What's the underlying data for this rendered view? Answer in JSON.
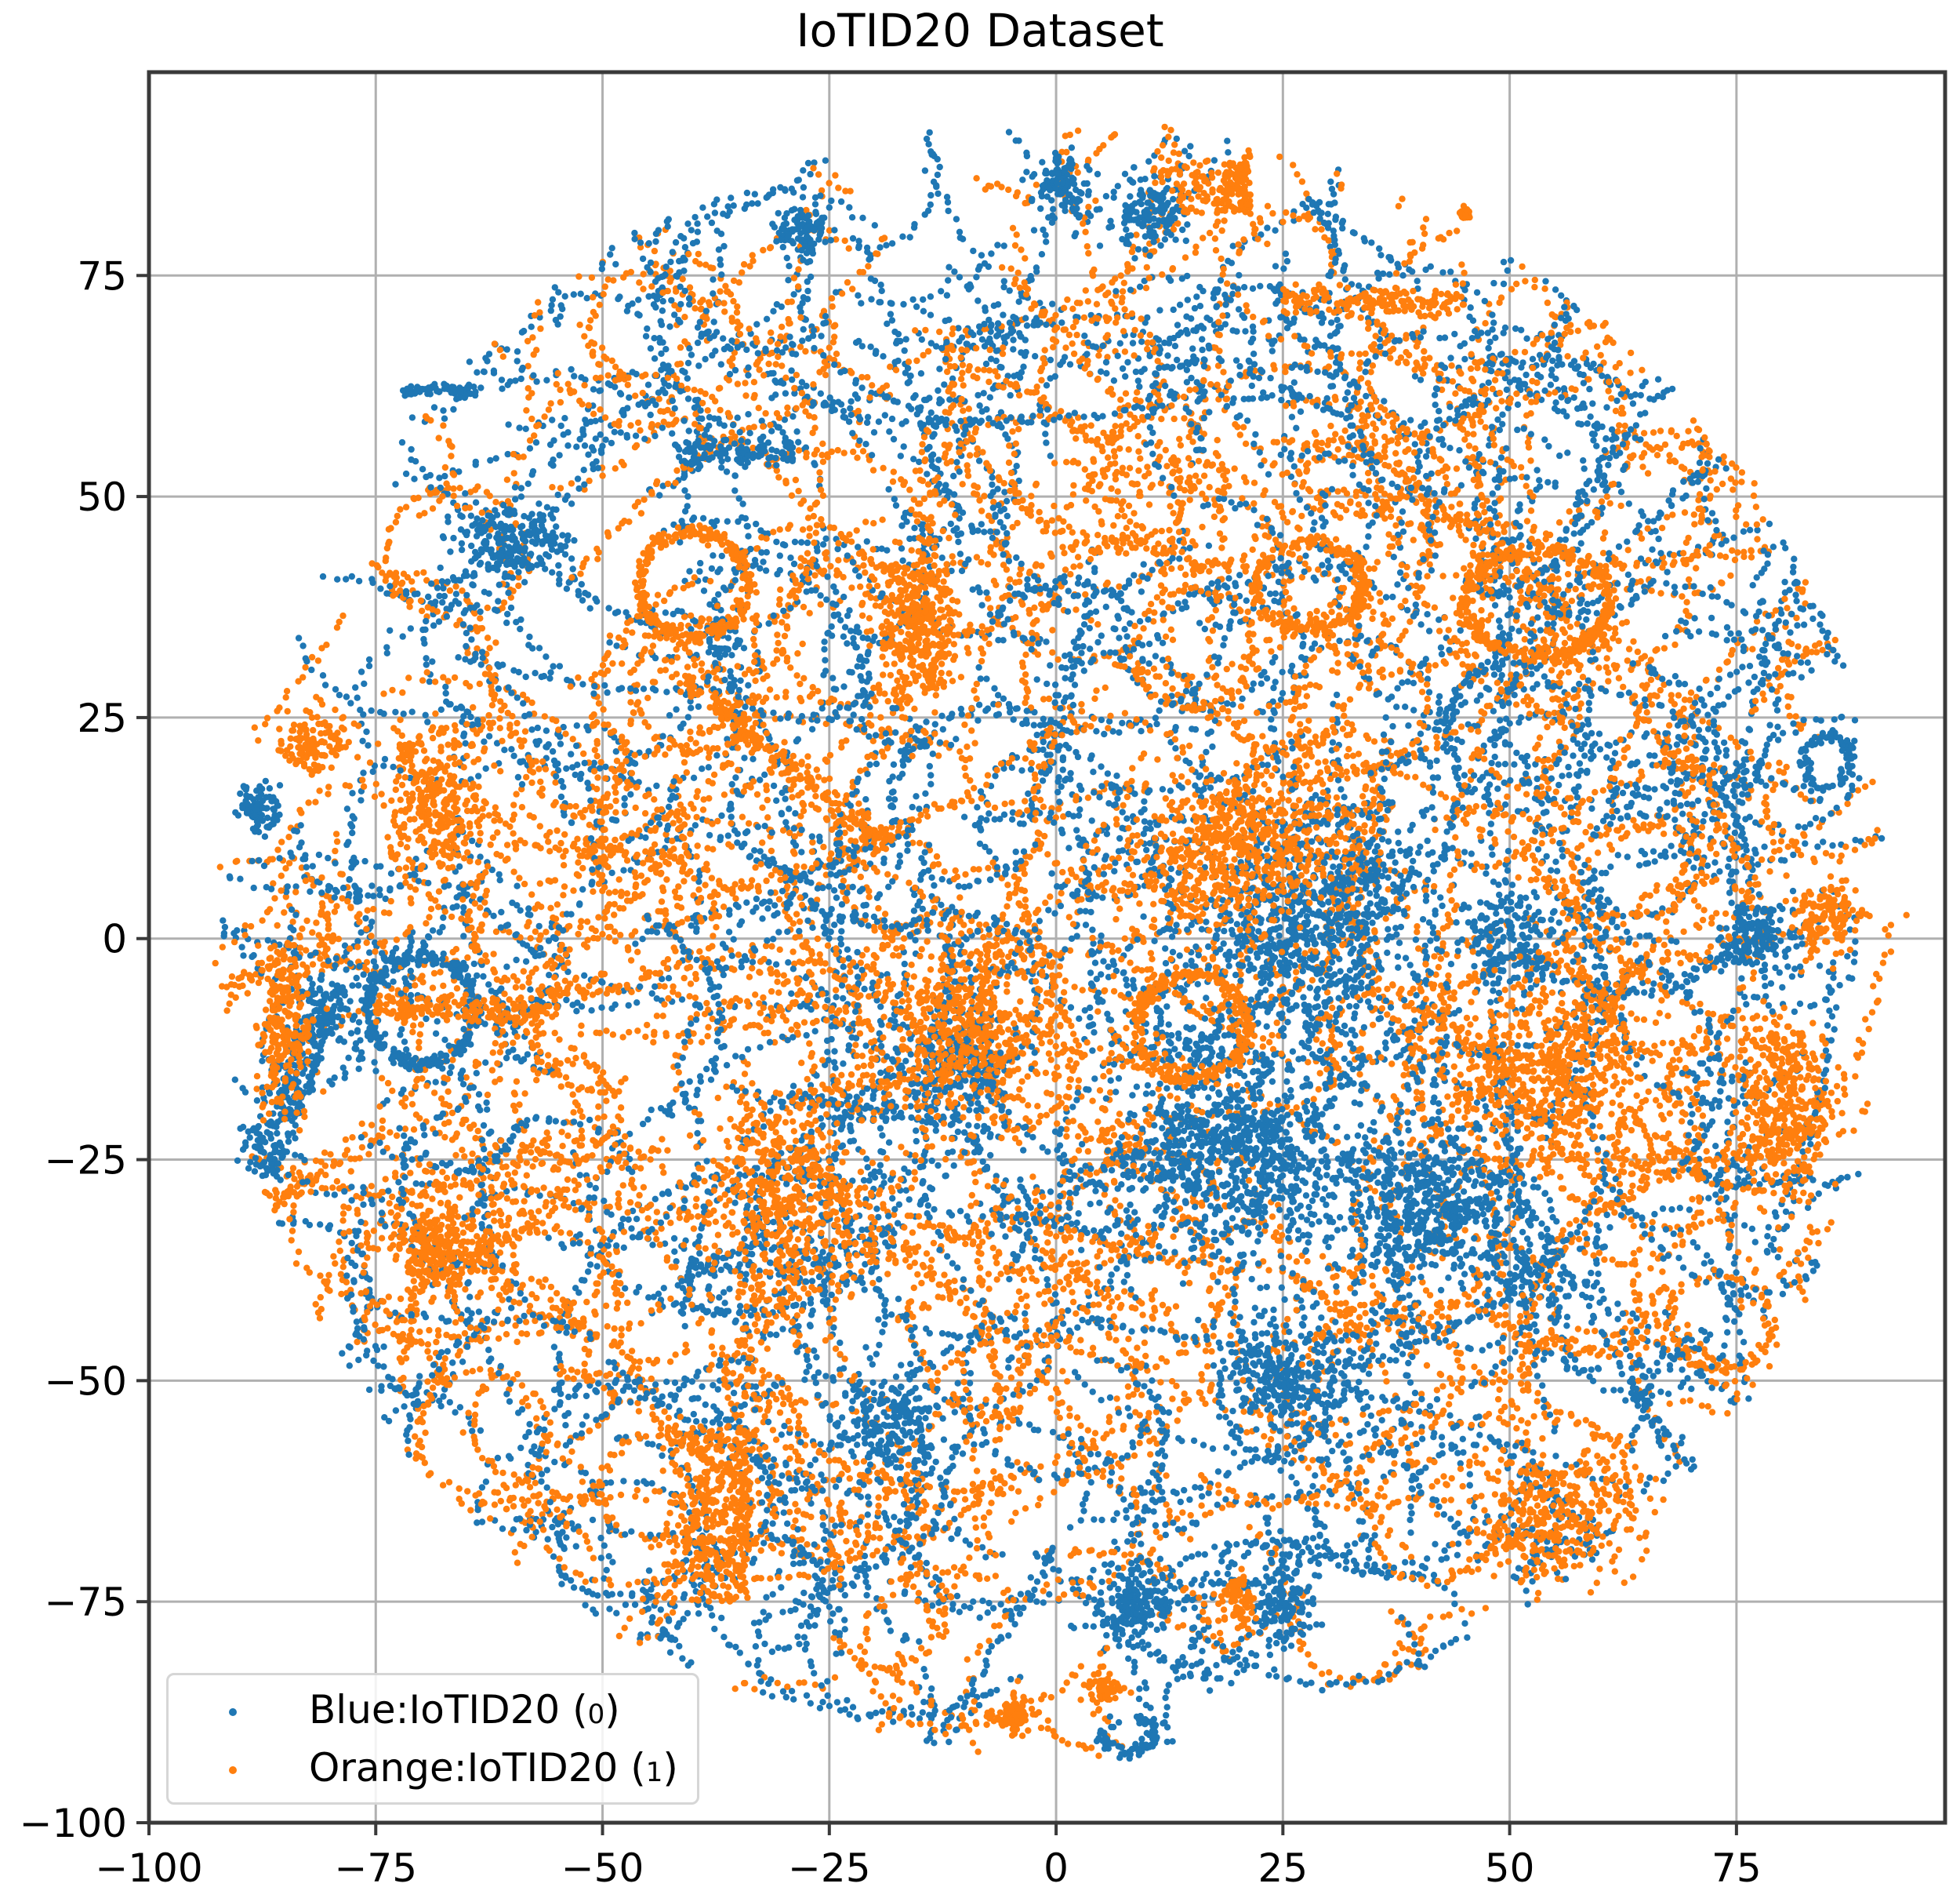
{
  "chart_data": {
    "type": "scatter",
    "title": "IoTID20 Dataset",
    "xlabel": "",
    "ylabel": "",
    "xlim": [
      -100,
      98
    ],
    "ylim": [
      -100,
      98
    ],
    "xticks": [
      -100,
      -75,
      -50,
      -25,
      0,
      25,
      50,
      75
    ],
    "yticks": [
      -100,
      -75,
      -50,
      -25,
      0,
      25,
      50,
      75
    ],
    "xtick_labels": [
      "−100",
      "−75",
      "−50",
      "−25",
      "0",
      "25",
      "50",
      "75"
    ],
    "ytick_labels": [
      "−100",
      "−75",
      "−50",
      "−25",
      "0",
      "25",
      "50",
      "75"
    ],
    "grid": true,
    "legend_position": "lower left",
    "description": "t-SNE style 2D embedding; points fill a roughly circular region of radius ~90 centered near (0, 0), with interleaved blue and orange curvilinear clusters",
    "series": [
      {
        "name": "Blue:IoTID20 (0)",
        "label_main": "Blue:IoTID20 (",
        "label_digit": "0",
        "label_close": ")",
        "color": "#1f77b4",
        "clusters": [
          {
            "cx": -88,
            "cy": 15,
            "rx": 2.5,
            "ry": 3,
            "shape": "blob"
          },
          {
            "cx": -85,
            "cy": -15,
            "rx": 3,
            "ry": 12,
            "shape": "arc",
            "angle": -20
          },
          {
            "cx": -70,
            "cy": -8,
            "rx": 6,
            "ry": 6,
            "shape": "ring"
          },
          {
            "cx": -68,
            "cy": 62,
            "rx": 4,
            "ry": 1,
            "shape": "line"
          },
          {
            "cx": -60,
            "cy": 45,
            "rx": 6,
            "ry": 4,
            "shape": "blob"
          },
          {
            "cx": -35,
            "cy": 55,
            "rx": 6,
            "ry": 2,
            "shape": "line"
          },
          {
            "cx": -28,
            "cy": 80,
            "rx": 3,
            "ry": 3,
            "shape": "blob"
          },
          {
            "cx": 1,
            "cy": 85,
            "rx": 3,
            "ry": 4,
            "shape": "blob"
          },
          {
            "cx": 10,
            "cy": 82,
            "rx": 4,
            "ry": 4,
            "shape": "blob"
          },
          {
            "cx": 28,
            "cy": 2,
            "rx": 10,
            "ry": 10,
            "shape": "scatter"
          },
          {
            "cx": 20,
            "cy": -25,
            "rx": 12,
            "ry": 10,
            "shape": "scatter"
          },
          {
            "cx": 40,
            "cy": -30,
            "rx": 8,
            "ry": 8,
            "shape": "scatter"
          },
          {
            "cx": 25,
            "cy": -50,
            "rx": 6,
            "ry": 6,
            "shape": "scatter"
          },
          {
            "cx": -10,
            "cy": -15,
            "rx": 5,
            "ry": 5,
            "shape": "scatter"
          },
          {
            "cx": -18,
            "cy": -55,
            "rx": 5,
            "ry": 5,
            "shape": "scatter"
          },
          {
            "cx": 85,
            "cy": 20,
            "rx": 2.5,
            "ry": 3,
            "shape": "ring"
          },
          {
            "cx": 78,
            "cy": 0,
            "rx": 5,
            "ry": 4,
            "shape": "blob"
          },
          {
            "cx": 50,
            "cy": 0,
            "rx": 5,
            "ry": 5,
            "shape": "scatter"
          },
          {
            "cx": 9,
            "cy": -75,
            "rx": 4,
            "ry": 4,
            "shape": "blob"
          },
          {
            "cx": 25,
            "cy": -75,
            "rx": 3,
            "ry": 5,
            "shape": "blob"
          },
          {
            "cx": 8,
            "cy": -90,
            "rx": 3,
            "ry": 2,
            "shape": "ring"
          }
        ]
      },
      {
        "name": "Orange:IoTID20 (1)",
        "label_main": "Orange:IoTID20 (",
        "label_digit": "1",
        "label_close": ")",
        "color": "#ff7f0e",
        "clusters": [
          {
            "cx": -82,
            "cy": 22,
            "rx": 4,
            "ry": 3,
            "shape": "blob"
          },
          {
            "cx": -68,
            "cy": 15,
            "rx": 5,
            "ry": 8,
            "shape": "blob"
          },
          {
            "cx": -85,
            "cy": -10,
            "rx": 3,
            "ry": 10,
            "shape": "blob"
          },
          {
            "cx": -65,
            "cy": -8,
            "rx": 10,
            "ry": 2,
            "shape": "line"
          },
          {
            "cx": -68,
            "cy": -35,
            "rx": 6,
            "ry": 6,
            "shape": "blob"
          },
          {
            "cx": -30,
            "cy": -30,
            "rx": 8,
            "ry": 10,
            "shape": "scatter"
          },
          {
            "cx": -40,
            "cy": 40,
            "rx": 6,
            "ry": 6,
            "shape": "ring"
          },
          {
            "cx": -30,
            "cy": 20,
            "rx": 15,
            "ry": 2,
            "shape": "line",
            "angle": -40
          },
          {
            "cx": -15,
            "cy": 35,
            "rx": 5,
            "ry": 10,
            "shape": "blob"
          },
          {
            "cx": -10,
            "cy": -10,
            "rx": 8,
            "ry": 8,
            "shape": "scatter"
          },
          {
            "cx": 15,
            "cy": 85,
            "rx": 6,
            "ry": 3,
            "shape": "arc"
          },
          {
            "cx": 35,
            "cy": 72,
            "rx": 10,
            "ry": 2,
            "shape": "line"
          },
          {
            "cx": 28,
            "cy": 40,
            "rx": 6,
            "ry": 5,
            "shape": "ring"
          },
          {
            "cx": 53,
            "cy": 38,
            "rx": 8,
            "ry": 6,
            "shape": "ring"
          },
          {
            "cx": 20,
            "cy": 10,
            "rx": 10,
            "ry": 8,
            "shape": "scatter"
          },
          {
            "cx": 15,
            "cy": -10,
            "rx": 6,
            "ry": 6,
            "shape": "ring"
          },
          {
            "cx": 55,
            "cy": -15,
            "rx": 8,
            "ry": 8,
            "shape": "scatter"
          },
          {
            "cx": 80,
            "cy": -20,
            "rx": 5,
            "ry": 10,
            "shape": "blob"
          },
          {
            "cx": 85,
            "cy": 3,
            "rx": 4,
            "ry": 4,
            "shape": "blob"
          },
          {
            "cx": 55,
            "cy": -65,
            "rx": 8,
            "ry": 6,
            "shape": "scatter"
          },
          {
            "cx": -40,
            "cy": -65,
            "rx": 6,
            "ry": 10,
            "shape": "arc"
          },
          {
            "cx": -5,
            "cy": -88,
            "rx": 2,
            "ry": 2,
            "shape": "blob"
          },
          {
            "cx": 5,
            "cy": -85,
            "rx": 2,
            "ry": 2,
            "shape": "blob"
          },
          {
            "cx": 20,
            "cy": -75,
            "rx": 2,
            "ry": 3,
            "shape": "blob"
          },
          {
            "cx": 45,
            "cy": 82,
            "rx": 0.6,
            "ry": 0.6,
            "shape": "blob"
          }
        ]
      }
    ]
  },
  "legend": {
    "items": [
      {
        "label_main": "Blue:IoTID20 (",
        "label_digit": "0",
        "label_close": ")",
        "color": "#1f77b4"
      },
      {
        "label_main": "Orange:IoTID20 (",
        "label_digit": "1",
        "label_close": ")",
        "color": "#ff7f0e"
      }
    ]
  },
  "colors": {
    "blue": "#1f77b4",
    "orange": "#ff7f0e",
    "grid": "#b0b0b0",
    "axes": "#3a3a3a"
  }
}
